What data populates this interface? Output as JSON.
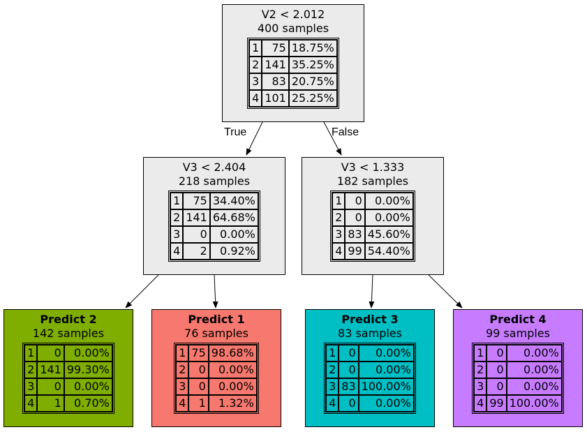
{
  "colors": {
    "internal_fill": "#ebebeb",
    "leaf_fills": [
      "#7fae00",
      "#f7786e",
      "#00bfc4",
      "#c77cff"
    ]
  },
  "edge_labels": {
    "true_label": "True",
    "false_label": "False"
  },
  "nodes": [
    {
      "title": "V2 < 2.012",
      "samples": "400 samples",
      "rows": [
        [
          "1",
          "75",
          "18.75%"
        ],
        [
          "2",
          "141",
          "35.25%"
        ],
        [
          "3",
          "83",
          "20.75%"
        ],
        [
          "4",
          "101",
          "25.25%"
        ]
      ]
    },
    {
      "title": "V3 < 2.404",
      "samples": "218 samples",
      "rows": [
        [
          "1",
          "75",
          "34.40%"
        ],
        [
          "2",
          "141",
          "64.68%"
        ],
        [
          "3",
          "0",
          "0.00%"
        ],
        [
          "4",
          "2",
          "0.92%"
        ]
      ]
    },
    {
      "title": "V3 < 1.333",
      "samples": "182 samples",
      "rows": [
        [
          "1",
          "0",
          "0.00%"
        ],
        [
          "2",
          "0",
          "0.00%"
        ],
        [
          "3",
          "83",
          "45.60%"
        ],
        [
          "4",
          "99",
          "54.40%"
        ]
      ]
    },
    {
      "title": "Predict 2",
      "samples": "142 samples",
      "rows": [
        [
          "1",
          "0",
          "0.00%"
        ],
        [
          "2",
          "141",
          "99.30%"
        ],
        [
          "3",
          "0",
          "0.00%"
        ],
        [
          "4",
          "1",
          "0.70%"
        ]
      ]
    },
    {
      "title": "Predict 1",
      "samples": "76 samples",
      "rows": [
        [
          "1",
          "75",
          "98.68%"
        ],
        [
          "2",
          "0",
          "0.00%"
        ],
        [
          "3",
          "0",
          "0.00%"
        ],
        [
          "4",
          "1",
          "1.32%"
        ]
      ]
    },
    {
      "title": "Predict 3",
      "samples": "83 samples",
      "rows": [
        [
          "1",
          "0",
          "0.00%"
        ],
        [
          "2",
          "0",
          "0.00%"
        ],
        [
          "3",
          "83",
          "100.00%"
        ],
        [
          "4",
          "0",
          "0.00%"
        ]
      ]
    },
    {
      "title": "Predict 4",
      "samples": "99 samples",
      "rows": [
        [
          "1",
          "0",
          "0.00%"
        ],
        [
          "2",
          "0",
          "0.00%"
        ],
        [
          "3",
          "0",
          "0.00%"
        ],
        [
          "4",
          "99",
          "100.00%"
        ]
      ]
    }
  ]
}
